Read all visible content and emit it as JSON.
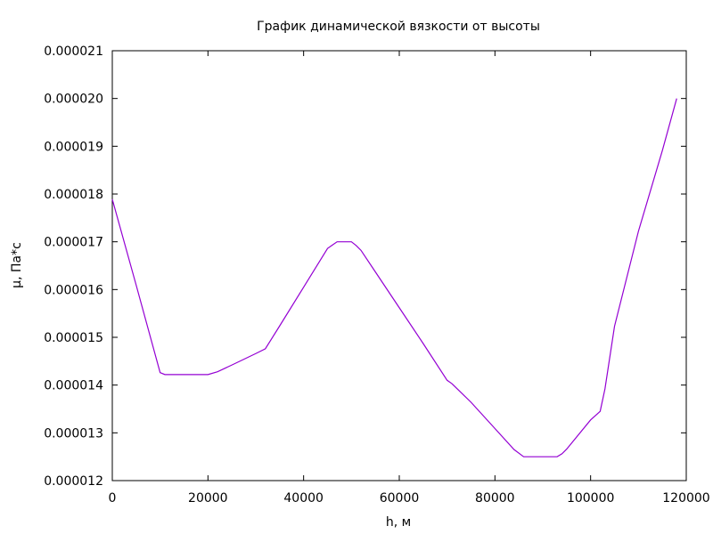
{
  "chart_data": {
    "type": "line",
    "title": "График динамической вязкости от высоты",
    "xlabel": "h, м",
    "ylabel": "μ, Па*с",
    "xlim": [
      0,
      120000
    ],
    "ylim": [
      1.2e-05,
      2.1e-05
    ],
    "x_ticks": [
      "0",
      "20000",
      "40000",
      "60000",
      "80000",
      "100000",
      "120000"
    ],
    "y_ticks": [
      "0.000012",
      "0.000013",
      "0.000014",
      "0.000015",
      "0.000016",
      "0.000017",
      "0.000018",
      "0.000019",
      "0.000020",
      "0.000021"
    ],
    "grid": false,
    "legend": "none",
    "colors": {
      "line": "#9400d3",
      "axes": "#000000"
    },
    "series": [
      {
        "x": [
          0,
          5000,
          10000,
          11000,
          15000,
          20000,
          22000,
          25000,
          30000,
          32000,
          35000,
          40000,
          45000,
          46000,
          47000,
          48000,
          50000,
          51000,
          52000,
          55000,
          60000,
          65000,
          70000,
          71000,
          75000,
          80000,
          84000,
          86000,
          90000,
          93000,
          94000,
          95000,
          100000,
          102000,
          103000,
          105000,
          110000,
          115000,
          118000
        ],
        "y": [
          1.789e-05,
          1.609e-05,
          1.426e-05,
          1.422e-05,
          1.422e-05,
          1.422e-05,
          1.428e-05,
          1.442e-05,
          1.466e-05,
          1.476e-05,
          1.524e-05,
          1.605e-05,
          1.686e-05,
          1.693e-05,
          1.7e-05,
          1.7e-05,
          1.7e-05,
          1.692e-05,
          1.682e-05,
          1.637e-05,
          1.562e-05,
          1.487e-05,
          1.41e-05,
          1.403e-05,
          1.364e-05,
          1.309e-05,
          1.265e-05,
          1.25e-05,
          1.25e-05,
          1.25e-05,
          1.256e-05,
          1.266e-05,
          1.327e-05,
          1.345e-05,
          1.392e-05,
          1.523e-05,
          1.722e-05,
          1.891e-05,
          2e-05
        ]
      }
    ]
  }
}
